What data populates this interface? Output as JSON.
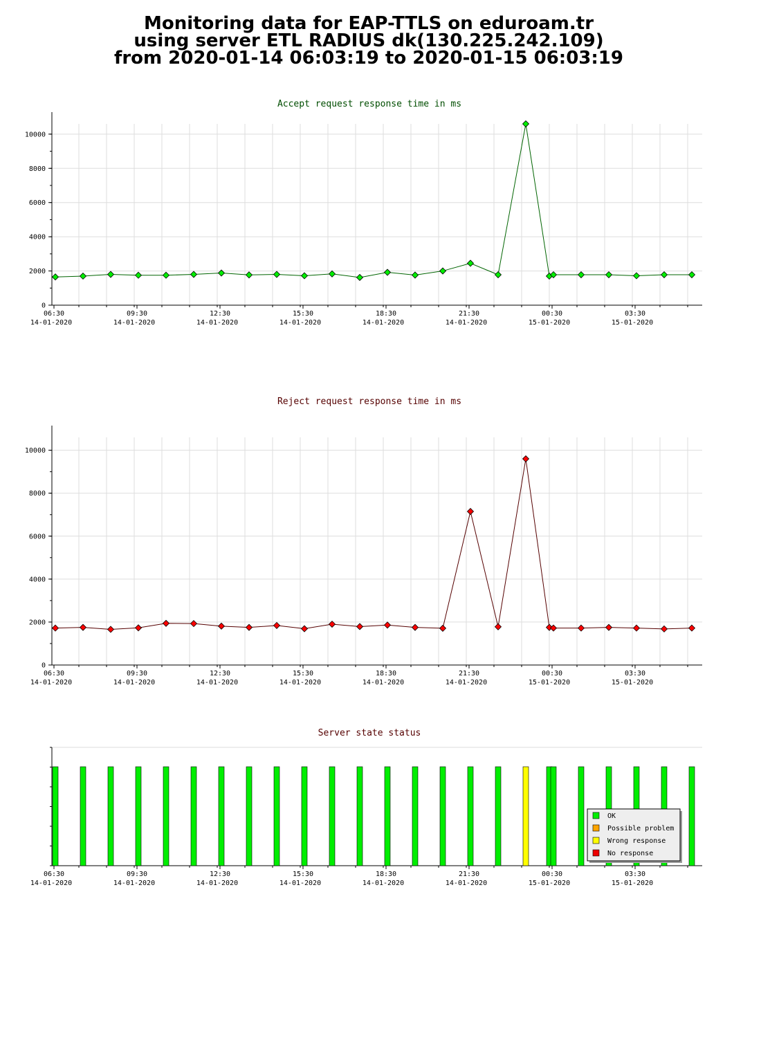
{
  "header": {
    "line1": "Monitoring data for EAP-TTLS on eduroam.tr",
    "line2": "using server ETL RADIUS dk(130.225.242.109)",
    "line3": "from 2020-01-14 06:03:19 to 2020-01-15 06:03:19"
  },
  "colors": {
    "accept_line": "#006400",
    "accept_marker": "#00ee00",
    "reject_line": "#550000",
    "reject_marker": "#ff0000",
    "title_green": "#004d00",
    "title_red": "#550000",
    "status_ok": "#00ee00",
    "status_possible": "#ffa500",
    "status_wrong": "#ffff00",
    "status_none": "#ee0000",
    "grid": "#dddddd"
  },
  "chart_data": [
    {
      "type": "line",
      "title": "Accept request response time in ms",
      "y_ticks": [
        0,
        2000,
        4000,
        6000,
        8000,
        10000
      ],
      "ylim": [
        0,
        10600
      ],
      "x_ticks": [
        {
          "t": 0.45,
          "time": "06:30",
          "date": "14-01-2020"
        },
        {
          "t": 3.45,
          "time": "09:30",
          "date": "14-01-2020"
        },
        {
          "t": 6.45,
          "time": "12:30",
          "date": "14-01-2020"
        },
        {
          "t": 9.45,
          "time": "15:30",
          "date": "14-01-2020"
        },
        {
          "t": 12.45,
          "time": "18:30",
          "date": "14-01-2020"
        },
        {
          "t": 15.45,
          "time": "21:30",
          "date": "14-01-2020"
        },
        {
          "t": 18.45,
          "time": "00:30",
          "date": "15-01-2020"
        },
        {
          "t": 21.45,
          "time": "03:30",
          "date": "15-01-2020"
        }
      ],
      "x": [
        0.5,
        1.5,
        2.5,
        3.5,
        4.5,
        5.5,
        6.5,
        7.5,
        8.5,
        9.5,
        10.5,
        11.5,
        12.5,
        13.5,
        14.5,
        15.5,
        16.5,
        17.5,
        18.35,
        18.5,
        19.5,
        20.5,
        21.5,
        22.5,
        23.5
      ],
      "values": [
        1650,
        1700,
        1800,
        1750,
        1750,
        1800,
        1880,
        1770,
        1800,
        1720,
        1830,
        1620,
        1920,
        1760,
        2000,
        2450,
        1780,
        10600,
        1700,
        1780,
        1780,
        1780,
        1720,
        1780,
        1780
      ],
      "ylim_max": 10600,
      "grid": true
    },
    {
      "type": "line",
      "title": "Reject request response time in ms",
      "y_ticks": [
        0,
        2000,
        4000,
        6000,
        8000,
        10000
      ],
      "ylim": [
        0,
        10600
      ],
      "x_ticks": [
        {
          "t": 0.45,
          "time": "06:30",
          "date": "14-01-2020"
        },
        {
          "t": 3.45,
          "time": "09:30",
          "date": "14-01-2020"
        },
        {
          "t": 6.45,
          "time": "12:30",
          "date": "14-01-2020"
        },
        {
          "t": 9.45,
          "time": "15:30",
          "date": "14-01-2020"
        },
        {
          "t": 12.45,
          "time": "18:30",
          "date": "14-01-2020"
        },
        {
          "t": 15.45,
          "time": "21:30",
          "date": "14-01-2020"
        },
        {
          "t": 18.45,
          "time": "00:30",
          "date": "15-01-2020"
        },
        {
          "t": 21.45,
          "time": "03:30",
          "date": "15-01-2020"
        }
      ],
      "x": [
        0.5,
        1.5,
        2.5,
        3.5,
        4.5,
        5.5,
        6.5,
        7.5,
        8.5,
        9.5,
        10.5,
        11.5,
        12.5,
        13.5,
        14.5,
        15.5,
        16.5,
        17.5,
        18.35,
        18.5,
        19.5,
        20.5,
        21.5,
        22.5,
        23.5
      ],
      "values": [
        1720,
        1750,
        1660,
        1730,
        1940,
        1930,
        1810,
        1750,
        1840,
        1690,
        1900,
        1790,
        1860,
        1750,
        1710,
        7150,
        1780,
        9600,
        1750,
        1720,
        1720,
        1750,
        1720,
        1680,
        1720
      ],
      "grid": true
    },
    {
      "type": "bar",
      "title": "Server state status",
      "x_ticks": [
        {
          "t": 0.45,
          "time": "06:30",
          "date": "14-01-2020"
        },
        {
          "t": 3.45,
          "time": "09:30",
          "date": "14-01-2020"
        },
        {
          "t": 6.45,
          "time": "12:30",
          "date": "14-01-2020"
        },
        {
          "t": 9.45,
          "time": "15:30",
          "date": "14-01-2020"
        },
        {
          "t": 12.45,
          "time": "18:30",
          "date": "14-01-2020"
        },
        {
          "t": 15.45,
          "time": "21:30",
          "date": "14-01-2020"
        },
        {
          "t": 18.45,
          "time": "00:30",
          "date": "15-01-2020"
        },
        {
          "t": 21.45,
          "time": "03:30",
          "date": "15-01-2020"
        }
      ],
      "x": [
        0.5,
        1.5,
        2.5,
        3.5,
        4.5,
        5.5,
        6.5,
        7.5,
        8.5,
        9.5,
        10.5,
        11.5,
        12.5,
        13.5,
        14.5,
        15.5,
        16.5,
        17.5,
        18.35,
        18.5,
        19.5,
        20.5,
        21.5,
        22.5,
        23.5
      ],
      "status": [
        "OK",
        "OK",
        "OK",
        "OK",
        "OK",
        "OK",
        "OK",
        "OK",
        "OK",
        "OK",
        "OK",
        "OK",
        "OK",
        "OK",
        "OK",
        "OK",
        "OK",
        "Wrong response",
        "OK",
        "OK",
        "OK",
        "OK",
        "OK",
        "OK",
        "OK"
      ],
      "legend": [
        "OK",
        "Possible problem",
        "Wrong response",
        "No response"
      ],
      "legend_position": "bottom-right"
    }
  ]
}
